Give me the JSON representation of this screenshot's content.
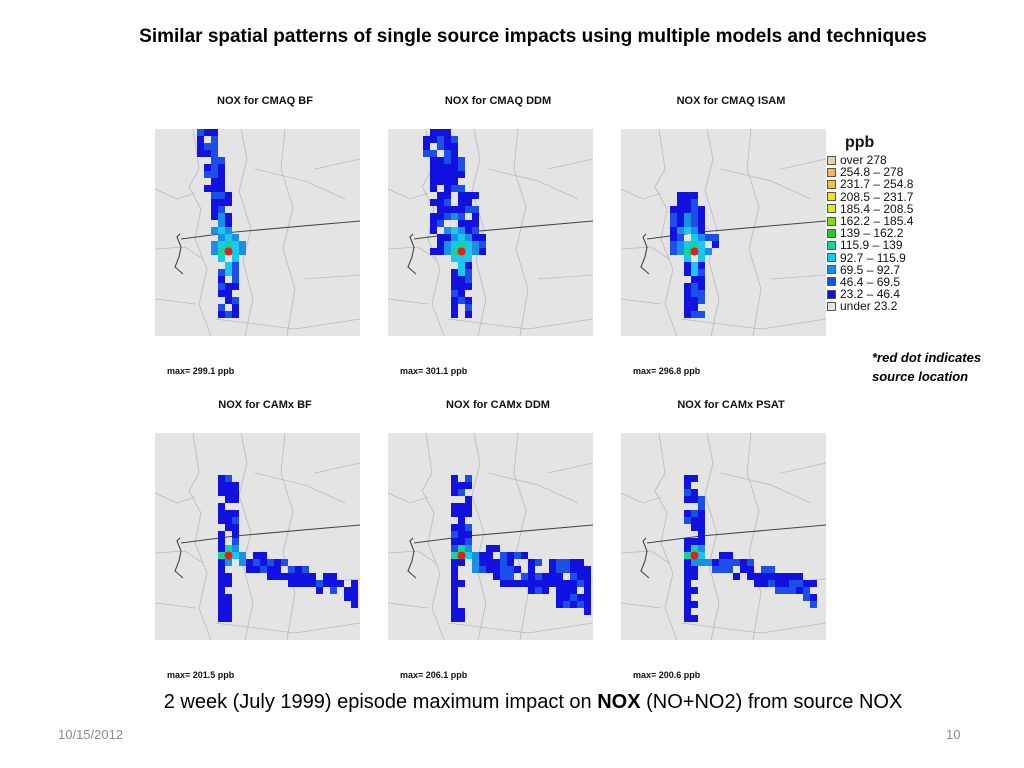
{
  "slide": {
    "title": "Similar spatial patterns of single source impacts using multiple models and techniques",
    "caption_prefix": "2 week (July 1999) episode maximum impact on ",
    "caption_bold": "NOX",
    "caption_suffix": " (NO+NO2) from source NOX",
    "date": "10/15/2012",
    "page_number": "10",
    "note_line1": "*red dot indicates",
    "note_line2": "source location"
  },
  "panels": [
    {
      "title": "NOX for CMAQ BF",
      "max_label": "max= 299.1 ppb",
      "pattern": "north_narrow"
    },
    {
      "title": "NOX for CMAQ DDM",
      "max_label": "max= 301.1 ppb",
      "pattern": "north_wide"
    },
    {
      "title": "NOX for CMAQ ISAM",
      "max_label": "max= 296.8 ppb",
      "pattern": "north_short"
    },
    {
      "title": "NOX for CAMx BF",
      "max_label": "max= 201.5 ppb",
      "pattern": "east_plume"
    },
    {
      "title": "NOX for CAMx DDM",
      "max_label": "max= 206.1 ppb",
      "pattern": "east_plume_wide"
    },
    {
      "title": "NOX for CAMx PSAT",
      "max_label": "max= 200.6 ppb",
      "pattern": "east_plume_thin"
    }
  ],
  "legend": {
    "title": "ppb",
    "items": [
      {
        "label": "over 278",
        "color": "#f7cba0"
      },
      {
        "label": "254.8 – 278",
        "color": "#f5b94f"
      },
      {
        "label": "231.7 – 254.8",
        "color": "#f2c23a"
      },
      {
        "label": "208.5 – 231.7",
        "color": "#f2e21e"
      },
      {
        "label": "185.4 – 208.5",
        "color": "#d9ec20"
      },
      {
        "label": "162.2 – 185.4",
        "color": "#8fd12a"
      },
      {
        "label": "139 – 162.2",
        "color": "#2fc52f"
      },
      {
        "label": "115.9 – 139",
        "color": "#17d39a"
      },
      {
        "label": "92.7 – 115.9",
        "color": "#19c8ef"
      },
      {
        "label": "69.5 – 92.7",
        "color": "#1a8fe8"
      },
      {
        "label": "46.4 – 69.5",
        "color": "#1b4fe8"
      },
      {
        "label": "23.2 – 46.4",
        "color": "#1212e0"
      },
      {
        "label": "under 23.2",
        "color": "#e4e4e4"
      }
    ]
  },
  "map_colors": {
    "background": "#e4e4e4",
    "boundary": "#b9b9b9",
    "state_line": "#444444",
    "source_dot": "#e02020"
  }
}
